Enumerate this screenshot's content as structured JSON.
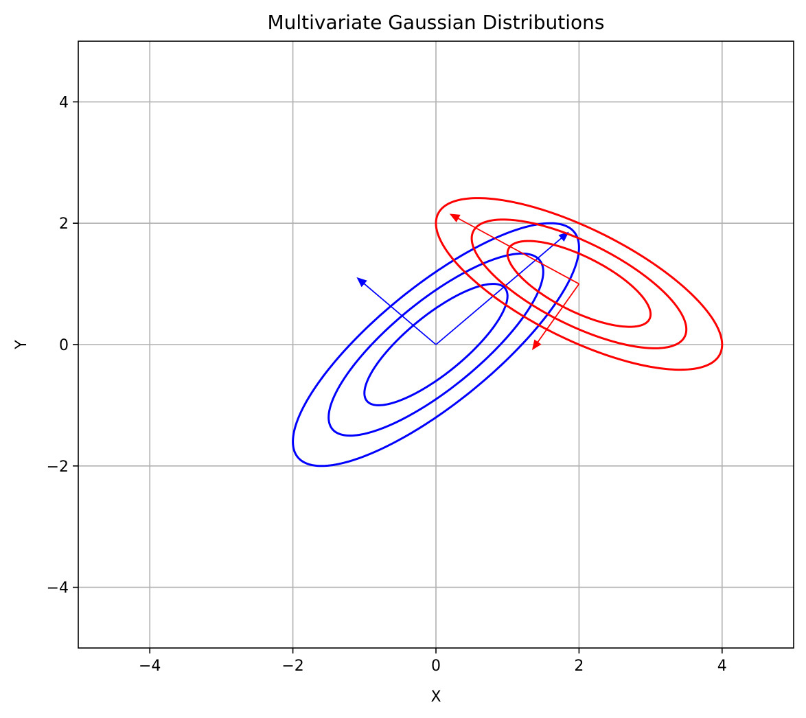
{
  "chart_data": {
    "type": "contour",
    "title": "Multivariate Gaussian Distributions",
    "xlabel": "X",
    "ylabel": "Y",
    "xlim": [
      -5,
      5
    ],
    "ylim": [
      -5,
      5
    ],
    "xticks": [
      -4,
      -2,
      0,
      2,
      4
    ],
    "yticks": [
      -4,
      -2,
      0,
      2,
      4
    ],
    "xtick_labels": [
      "−4",
      "−2",
      "0",
      "2",
      "4"
    ],
    "ytick_labels": [
      "−4",
      "−2",
      "0",
      "2",
      "4"
    ],
    "grid": true,
    "series": [
      {
        "color": "#0000ff",
        "mean": [
          0,
          0
        ],
        "covariance": [
          [
            1.0,
            0.8
          ],
          [
            0.8,
            1.0
          ]
        ],
        "contour_levels_sigma": [
          1,
          1.5,
          2
        ],
        "eigenvector_arrows": [
          {
            "dx": 1.85,
            "dy": 1.85
          },
          {
            "dx": -1.1,
            "dy": 1.1
          }
        ]
      },
      {
        "color": "#ff0000",
        "mean": [
          2,
          1
        ],
        "covariance": [
          [
            1.0,
            -0.5
          ],
          [
            -0.5,
            0.5
          ]
        ],
        "contour_levels_sigma": [
          1,
          1.5,
          2
        ],
        "eigenvector_arrows": [
          {
            "dx": -1.8,
            "dy": 1.15
          },
          {
            "dx": -0.65,
            "dy": -1.08
          }
        ]
      }
    ]
  }
}
